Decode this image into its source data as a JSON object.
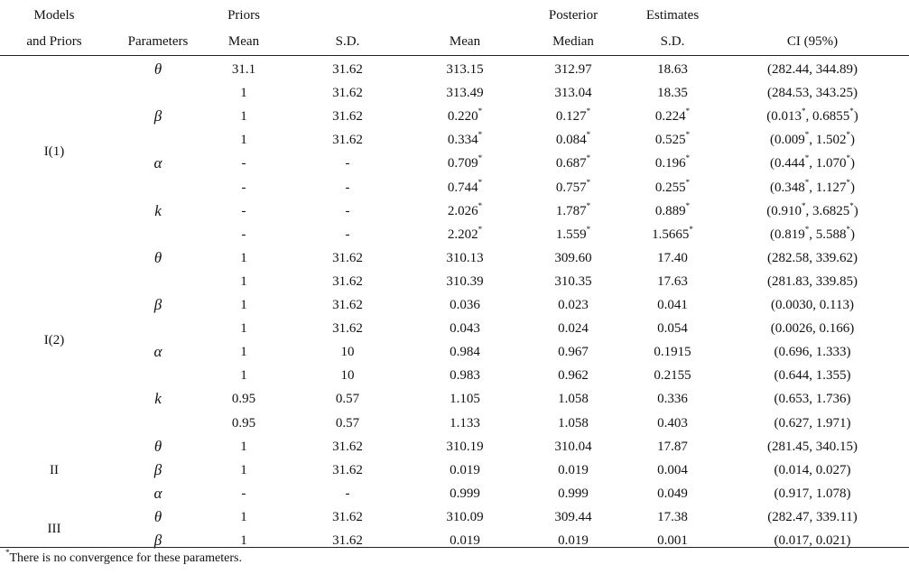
{
  "header": {
    "row1": {
      "models": "Models",
      "priors": "Priors",
      "posterior": "Posterior",
      "estimates": "Estimates"
    },
    "row2": {
      "and_priors": "and Priors",
      "parameters": "Parameters",
      "prior_mean": "Mean",
      "prior_sd": "S.D.",
      "mean": "Mean",
      "median": "Median",
      "sd": "S.D.",
      "ci": "CI (95%)"
    }
  },
  "model_groups": [
    {
      "label": "I(1)",
      "first_row": 0,
      "row_count": 8
    },
    {
      "label": "I(2)",
      "first_row": 8,
      "row_count": 8
    },
    {
      "label": "II",
      "first_row": 16,
      "row_count": 3
    },
    {
      "label": "III",
      "first_row": 19,
      "row_count": 2
    }
  ],
  "rows": [
    {
      "param": "θ",
      "prior_mean": "31.1",
      "prior_sd": "31.62",
      "mean": "313.15",
      "median": "312.97",
      "sd": "18.63",
      "ci": "(282.44, 344.89)"
    },
    {
      "param": "",
      "prior_mean": "1",
      "prior_sd": "31.62",
      "mean": "313.49",
      "median": "313.04",
      "sd": "18.35",
      "ci": "(284.53, 343.25)"
    },
    {
      "param": "β",
      "prior_mean": "1",
      "prior_sd": "31.62",
      "mean": "0.220*",
      "median": "0.127*",
      "sd": "0.224*",
      "ci": "(0.013*, 0.6855*)"
    },
    {
      "param": "",
      "prior_mean": "1",
      "prior_sd": "31.62",
      "mean": "0.334*",
      "median": "0.084*",
      "sd": "0.525*",
      "ci": "(0.009*, 1.502*)"
    },
    {
      "param": "α",
      "prior_mean": "-",
      "prior_sd": "-",
      "mean": "0.709*",
      "median": "0.687*",
      "sd": "0.196*",
      "ci": "(0.444*, 1.070*)"
    },
    {
      "param": "",
      "prior_mean": "-",
      "prior_sd": "-",
      "mean": "0.744*",
      "median": "0.757*",
      "sd": "0.255*",
      "ci": "(0.348*, 1.127*)"
    },
    {
      "param": "k",
      "prior_mean": "-",
      "prior_sd": "-",
      "mean": "2.026*",
      "median": "1.787*",
      "sd": "0.889*",
      "ci": "(0.910*, 3.6825*)"
    },
    {
      "param": "",
      "prior_mean": "-",
      "prior_sd": "-",
      "mean": "2.202*",
      "median": "1.559*",
      "sd": "1.5665*",
      "ci": "(0.819*, 5.588*)"
    },
    {
      "param": "θ",
      "prior_mean": "1",
      "prior_sd": "31.62",
      "mean": "310.13",
      "median": "309.60",
      "sd": "17.40",
      "ci": "(282.58, 339.62)"
    },
    {
      "param": "",
      "prior_mean": "1",
      "prior_sd": "31.62",
      "mean": "310.39",
      "median": "310.35",
      "sd": "17.63",
      "ci": "(281.83, 339.85)"
    },
    {
      "param": "β",
      "prior_mean": "1",
      "prior_sd": "31.62",
      "mean": "0.036",
      "median": "0.023",
      "sd": "0.041",
      "ci": "(0.0030, 0.113)"
    },
    {
      "param": "",
      "prior_mean": "1",
      "prior_sd": "31.62",
      "mean": "0.043",
      "median": "0.024",
      "sd": "0.054",
      "ci": "(0.0026, 0.166)"
    },
    {
      "param": "α",
      "prior_mean": "1",
      "prior_sd": "10",
      "mean": "0.984",
      "median": "0.967",
      "sd": "0.1915",
      "ci": "(0.696, 1.333)"
    },
    {
      "param": "",
      "prior_mean": "1",
      "prior_sd": "10",
      "mean": "0.983",
      "median": "0.962",
      "sd": "0.2155",
      "ci": "(0.644, 1.355)"
    },
    {
      "param": "k",
      "prior_mean": "0.95",
      "prior_sd": "0.57",
      "mean": "1.105",
      "median": "1.058",
      "sd": "0.336",
      "ci": "(0.653, 1.736)"
    },
    {
      "param": "",
      "prior_mean": "0.95",
      "prior_sd": "0.57",
      "mean": "1.133",
      "median": "1.058",
      "sd": "0.403",
      "ci": "(0.627, 1.971)"
    },
    {
      "param": "θ",
      "prior_mean": "1",
      "prior_sd": "31.62",
      "mean": "310.19",
      "median": "310.04",
      "sd": "17.87",
      "ci": "(281.45, 340.15)"
    },
    {
      "param": "β",
      "prior_mean": "1",
      "prior_sd": "31.62",
      "mean": "0.019",
      "median": "0.019",
      "sd": "0.004",
      "ci": "(0.014, 0.027)"
    },
    {
      "param": "α",
      "prior_mean": "-",
      "prior_sd": "-",
      "mean": "0.999",
      "median": "0.999",
      "sd": "0.049",
      "ci": "(0.917, 1.078)"
    },
    {
      "param": "θ",
      "prior_mean": "1",
      "prior_sd": "31.62",
      "mean": "310.09",
      "median": "309.44",
      "sd": "17.38",
      "ci": "(282.47, 339.11)"
    },
    {
      "param": "β",
      "prior_mean": "1",
      "prior_sd": "31.62",
      "mean": "0.019",
      "median": "0.019",
      "sd": "0.001",
      "ci": "(0.017, 0.021)"
    }
  ],
  "footnote": {
    "marker": "*",
    "text": "There is no convergence for these parameters."
  }
}
